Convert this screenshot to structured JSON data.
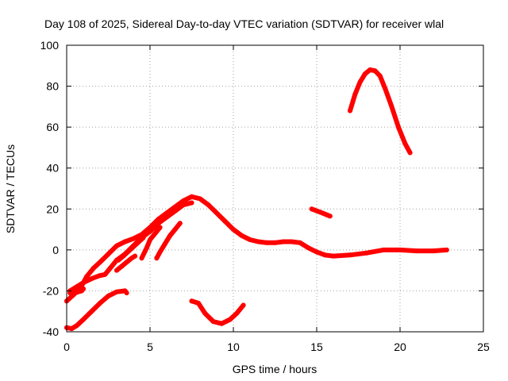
{
  "chart_data": {
    "type": "scatter",
    "title": "Day 108 of 2025, Sidereal Day-to-day VTEC variation (SDTVAR) for receiver wlal",
    "xlabel": "GPS time / hours",
    "ylabel": "SDTVAR / TECUs",
    "xlim": [
      0,
      25
    ],
    "ylim": [
      -40,
      100
    ],
    "xticks": [
      0,
      5,
      10,
      15,
      20,
      25
    ],
    "yticks": [
      -40,
      -20,
      0,
      20,
      40,
      60,
      80,
      100
    ],
    "grid": true,
    "color": "#ff0000",
    "series": [
      {
        "name": "arc-main",
        "points": [
          [
            0,
            -25
          ],
          [
            0.4,
            -22
          ],
          [
            0.8,
            -19
          ],
          [
            1.2,
            -13
          ],
          [
            1.6,
            -9
          ],
          [
            2.0,
            -6
          ],
          [
            2.5,
            -2
          ],
          [
            3.0,
            2
          ],
          [
            3.5,
            4
          ],
          [
            4.0,
            5.5
          ],
          [
            4.5,
            7.5
          ],
          [
            5.0,
            11
          ],
          [
            5.5,
            15
          ],
          [
            6.0,
            18
          ],
          [
            6.5,
            21
          ],
          [
            7.0,
            24
          ],
          [
            7.5,
            26
          ],
          [
            8.0,
            25
          ],
          [
            8.5,
            22
          ],
          [
            9.0,
            18
          ],
          [
            9.5,
            14
          ],
          [
            10.0,
            10
          ],
          [
            10.5,
            7
          ],
          [
            11.0,
            5
          ],
          [
            11.5,
            4
          ],
          [
            12.0,
            3.5
          ],
          [
            12.5,
            3.5
          ],
          [
            13.0,
            4
          ],
          [
            13.5,
            4
          ],
          [
            14.0,
            3.5
          ],
          [
            14.5,
            1
          ],
          [
            15.0,
            -1
          ],
          [
            15.5,
            -2.5
          ],
          [
            16.0,
            -3
          ],
          [
            17.0,
            -2.5
          ],
          [
            18.0,
            -1.5
          ],
          [
            19.0,
            0
          ],
          [
            20.0,
            0
          ],
          [
            21.0,
            -0.5
          ],
          [
            22.0,
            -0.5
          ],
          [
            22.8,
            0
          ]
        ]
      },
      {
        "name": "arc-a",
        "points": [
          [
            0.2,
            -20
          ],
          [
            0.6,
            -18
          ],
          [
            1.0,
            -16
          ],
          [
            1.5,
            -14
          ],
          [
            2.0,
            -12.5
          ],
          [
            2.3,
            -12
          ],
          [
            2.6,
            -9
          ],
          [
            3.0,
            -5
          ],
          [
            3.5,
            -2
          ],
          [
            4.0,
            2
          ],
          [
            4.5,
            6
          ],
          [
            5.0,
            9
          ],
          [
            5.5,
            13
          ],
          [
            6.0,
            16
          ],
          [
            6.5,
            19
          ],
          [
            7.0,
            22
          ],
          [
            7.5,
            23
          ]
        ]
      },
      {
        "name": "arc-b",
        "points": [
          [
            0.2,
            -21
          ],
          [
            0.5,
            -21
          ],
          [
            0.9,
            -20
          ],
          [
            1.0,
            -19
          ]
        ]
      },
      {
        "name": "arc-c",
        "points": [
          [
            3.1,
            -5
          ],
          [
            3.4,
            -3
          ],
          [
            3.8,
            0
          ],
          [
            4.2,
            3
          ],
          [
            4.6,
            6
          ]
        ]
      },
      {
        "name": "arc-d",
        "points": [
          [
            3.0,
            -10
          ],
          [
            3.3,
            -8
          ],
          [
            3.6,
            -6
          ],
          [
            3.9,
            -4
          ],
          [
            4.1,
            -3
          ]
        ]
      },
      {
        "name": "arc-e",
        "points": [
          [
            4.5,
            -4
          ],
          [
            4.8,
            1
          ],
          [
            5.0,
            5
          ],
          [
            5.3,
            8
          ],
          [
            5.6,
            11
          ]
        ]
      },
      {
        "name": "arc-f",
        "points": [
          [
            5.4,
            -4
          ],
          [
            5.6,
            -1
          ],
          [
            5.9,
            3
          ],
          [
            6.2,
            7
          ],
          [
            6.5,
            10
          ],
          [
            6.8,
            13
          ]
        ]
      },
      {
        "name": "arc-g",
        "points": [
          [
            0,
            -38
          ],
          [
            0.3,
            -38.5
          ],
          [
            0.6,
            -37
          ],
          [
            1.0,
            -34
          ],
          [
            1.5,
            -30
          ],
          [
            2.0,
            -26
          ],
          [
            2.5,
            -22.5
          ],
          [
            3.0,
            -20.5
          ],
          [
            3.5,
            -20
          ],
          [
            3.6,
            -21
          ]
        ]
      },
      {
        "name": "arc-h",
        "points": [
          [
            7.5,
            -25
          ],
          [
            7.9,
            -26
          ],
          [
            8.3,
            -31
          ],
          [
            8.8,
            -35
          ],
          [
            9.3,
            -36
          ],
          [
            9.8,
            -34
          ],
          [
            10.2,
            -31
          ],
          [
            10.6,
            -27
          ]
        ]
      },
      {
        "name": "arc-i",
        "points": [
          [
            14.7,
            20
          ],
          [
            15.2,
            18.5
          ],
          [
            15.8,
            16.5
          ]
        ]
      },
      {
        "name": "arc-j",
        "points": [
          [
            17.0,
            68
          ],
          [
            17.3,
            76
          ],
          [
            17.6,
            82
          ],
          [
            17.9,
            86
          ],
          [
            18.2,
            88
          ],
          [
            18.5,
            87.5
          ],
          [
            18.8,
            85
          ],
          [
            19.1,
            79
          ],
          [
            19.5,
            70
          ],
          [
            19.9,
            60
          ],
          [
            20.3,
            52
          ],
          [
            20.6,
            47.5
          ]
        ]
      }
    ]
  }
}
